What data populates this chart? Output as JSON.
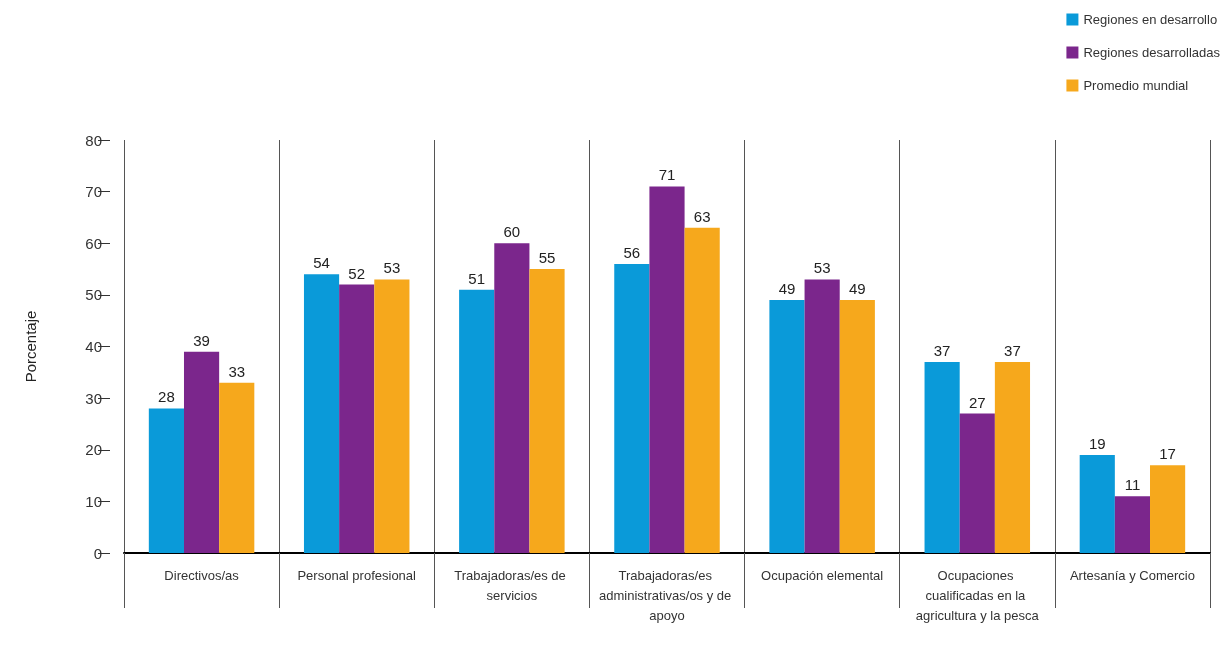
{
  "chart_data": {
    "type": "bar",
    "ylabel": "Porcentaje",
    "categories": [
      "Directivos/as",
      "Personal profesional",
      "Trabajadoras/es de servicios",
      "Trabajadoras/es administrativas/os y de apoyo",
      "Ocupación elemental",
      "Ocupaciones cualificadas en la agricultura y la pesca",
      "Artesanía y Comercio"
    ],
    "series": [
      {
        "name": "Regiones en desarrollo",
        "color": "#0a9ad9",
        "values": [
          28,
          54,
          51,
          56,
          49,
          37,
          19
        ]
      },
      {
        "name": "Regiones desarrolladas",
        "color": "#7b268c",
        "values": [
          39,
          52,
          60,
          71,
          53,
          27,
          11
        ]
      },
      {
        "name": "Promedio mundial",
        "color": "#f6a81c",
        "values": [
          33,
          53,
          55,
          63,
          49,
          37,
          17
        ]
      }
    ],
    "ylim": [
      0,
      80
    ],
    "yticks": [
      0,
      10,
      20,
      30,
      40,
      50,
      60,
      70,
      80
    ],
    "grid": "x",
    "legend": "top right",
    "data_labels": true
  }
}
